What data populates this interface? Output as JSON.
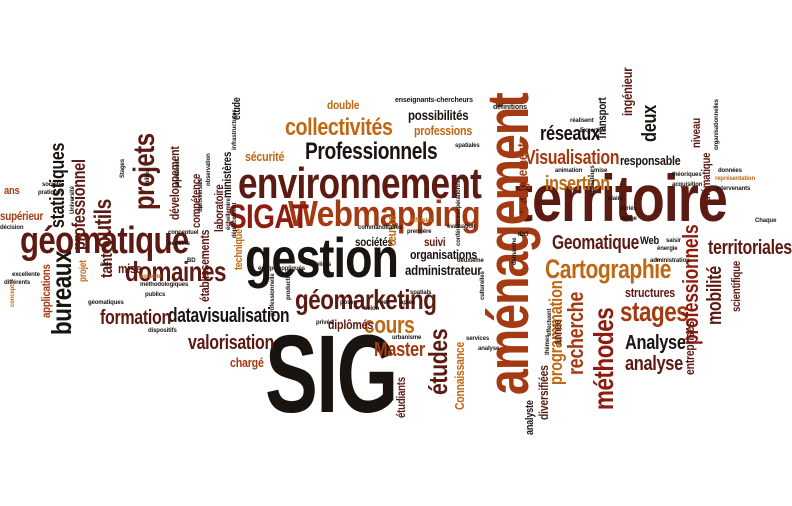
{
  "palette": {
    "dark": "#1a1410",
    "maroon": "#5c1a12",
    "red": "#8e1b10",
    "rust": "#a33a12",
    "orange": "#bf6712",
    "gold": "#c8961c"
  },
  "words": [
    {
      "id": "sig",
      "text": "SIG",
      "color": "dark"
    },
    {
      "id": "territoire",
      "text": "territoire",
      "color": "maroon"
    },
    {
      "id": "amenagement",
      "text": "aménagement",
      "color": "rust"
    },
    {
      "id": "gestion",
      "text": "gestion",
      "color": "dark"
    },
    {
      "id": "environnement",
      "text": "environnement",
      "color": "maroon"
    },
    {
      "id": "geomatique",
      "text": "géomatique",
      "color": "maroon"
    },
    {
      "id": "webmapping",
      "text": "Webmapping",
      "color": "rust"
    },
    {
      "id": "sigat",
      "text": "SIGAT",
      "color": "red"
    },
    {
      "id": "geomarketing",
      "text": "géomarketing",
      "color": "maroon"
    },
    {
      "id": "professionnels",
      "text": "Professionnels",
      "color": "dark"
    },
    {
      "id": "collectivites",
      "text": "collectivités",
      "color": "orange"
    },
    {
      "id": "cartographie",
      "text": "Cartographie",
      "color": "orange"
    },
    {
      "id": "methodes",
      "text": "méthodes",
      "color": "red"
    },
    {
      "id": "projets",
      "text": "projets",
      "color": "maroon"
    },
    {
      "id": "domaines",
      "text": "domaines",
      "color": "maroon"
    },
    {
      "id": "bureaux",
      "text": "bureaux",
      "color": "dark"
    },
    {
      "id": "stages",
      "text": "stages",
      "color": "rust"
    },
    {
      "id": "etudes",
      "text": "études",
      "color": "maroon"
    },
    {
      "id": "cours",
      "text": "cours",
      "color": "orange"
    },
    {
      "id": "outils",
      "text": "outils",
      "color": "maroon"
    },
    {
      "id": "visualisation",
      "text": "Visualisation",
      "color": "rust"
    },
    {
      "id": "recherche",
      "text": "recherche",
      "color": "rust"
    },
    {
      "id": "territoriales",
      "text": "territoriales",
      "color": "maroon"
    },
    {
      "id": "programmation",
      "text": "programmation",
      "color": "orange"
    },
    {
      "id": "datavisualisation",
      "text": "datavisualisation",
      "color": "dark"
    },
    {
      "id": "formation",
      "text": "formation",
      "color": "maroon"
    },
    {
      "id": "valorisation",
      "text": "valorisation",
      "color": "maroon"
    },
    {
      "id": "analyse_cap",
      "text": "Analyse",
      "color": "dark"
    },
    {
      "id": "analyse",
      "text": "analyse",
      "color": "maroon"
    },
    {
      "id": "master",
      "text": "Master",
      "color": "rust"
    },
    {
      "id": "insertion",
      "text": "insertion",
      "color": "orange"
    },
    {
      "id": "geomatique_cap",
      "text": "Geomatique",
      "color": "maroon"
    },
    {
      "id": "reseaux",
      "text": "réseaux",
      "color": "dark"
    },
    {
      "id": "statistiques",
      "text": "statistiques",
      "color": "dark"
    },
    {
      "id": "professionnel",
      "text": "professionnel",
      "color": "maroon"
    },
    {
      "id": "enseignement",
      "text": "enseignement",
      "color": "rust"
    },
    {
      "id": "tant",
      "text": "tant",
      "color": "maroon"
    },
    {
      "id": "professionnels2",
      "text": "professionnels",
      "color": "red"
    },
    {
      "id": "mobilite",
      "text": "mobilité",
      "color": "maroon"
    },
    {
      "id": "deux",
      "text": "deux",
      "color": "dark"
    },
    {
      "id": "structures",
      "text": "structures",
      "color": "maroon"
    },
    {
      "id": "administrateur",
      "text": "administrateur",
      "color": "dark"
    },
    {
      "id": "organisations",
      "text": "organisations",
      "color": "dark"
    },
    {
      "id": "possibilites",
      "text": "possibilités",
      "color": "dark"
    },
    {
      "id": "professions",
      "text": "professions",
      "color": "orange"
    },
    {
      "id": "double",
      "text": "double",
      "color": "orange"
    },
    {
      "id": "developpement",
      "text": "développement",
      "color": "maroon"
    },
    {
      "id": "competence",
      "text": "compétence",
      "color": "maroon"
    },
    {
      "id": "etablissements",
      "text": "établissements",
      "color": "maroon"
    },
    {
      "id": "laboratoire",
      "text": "laboratoire",
      "color": "maroon"
    },
    {
      "id": "ministeres",
      "text": "ministères",
      "color": "dark"
    },
    {
      "id": "etude",
      "text": "étude",
      "color": "dark"
    },
    {
      "id": "securite",
      "text": "sécurité",
      "color": "orange"
    },
    {
      "id": "societes",
      "text": "sociétés",
      "color": "dark"
    },
    {
      "id": "oeuvre",
      "text": "œuvre",
      "color": "orange"
    },
    {
      "id": "suivi",
      "text": "suivi",
      "color": "maroon"
    },
    {
      "id": "diplomes",
      "text": "diplômés",
      "color": "maroon"
    },
    {
      "id": "charge",
      "text": "chargé",
      "color": "rust"
    },
    {
      "id": "mise",
      "text": "mise",
      "color": "maroon"
    },
    {
      "id": "technique",
      "text": "technique",
      "color": "orange"
    },
    {
      "id": "projet",
      "text": "projet",
      "color": "orange"
    },
    {
      "id": "ans",
      "text": "ans",
      "color": "rust"
    },
    {
      "id": "superieur",
      "text": "supérieur",
      "color": "rust"
    },
    {
      "id": "applications",
      "text": "applications",
      "color": "rust"
    },
    {
      "id": "ingenieur",
      "text": "ingénieur",
      "color": "maroon"
    },
    {
      "id": "responsable",
      "text": "responsable",
      "color": "dark"
    },
    {
      "id": "niveau",
      "text": "niveau",
      "color": "maroon"
    },
    {
      "id": "thematique",
      "text": "thématique",
      "color": "maroon"
    },
    {
      "id": "transport",
      "text": "Transport",
      "color": "dark"
    },
    {
      "id": "web",
      "text": "Web",
      "color": "dark"
    },
    {
      "id": "entreprises",
      "text": "entreprises",
      "color": "maroon"
    },
    {
      "id": "scientifique",
      "text": "scientifique",
      "color": "maroon"
    },
    {
      "id": "connaissance",
      "text": "Connaissance",
      "color": "orange"
    },
    {
      "id": "diversifiees",
      "text": "diversifiées",
      "color": "maroon"
    },
    {
      "id": "etudiants",
      "text": "étudiants",
      "color": "maroon"
    },
    {
      "id": "analyste",
      "text": "analyste",
      "color": "dark"
    },
    {
      "id": "annee",
      "text": "année",
      "color": "maroon"
    },
    {
      "id": "enseignants",
      "text": "enseignants-chercheurs",
      "color": "dark"
    },
    {
      "id": "definitions",
      "text": "définitions",
      "color": "dark"
    },
    {
      "id": "commanditaires",
      "text": "commanditaires",
      "color": "dark"
    },
    {
      "id": "premiere",
      "text": "première",
      "color": "dark"
    },
    {
      "id": "diffusion",
      "text": "diffusion",
      "color": "orange"
    },
    {
      "id": "evaluation",
      "text": "évaluation",
      "color": "dark"
    },
    {
      "id": "spatiales",
      "text": "spatiales",
      "color": "dark"
    },
    {
      "id": "operationnel",
      "text": "opérationnel",
      "color": "dark"
    },
    {
      "id": "poser",
      "text": "poser",
      "color": "dark"
    },
    {
      "id": "lien",
      "text": "lien",
      "color": "dark"
    },
    {
      "id": "aptes",
      "text": "aptes",
      "color": "dark"
    },
    {
      "id": "prives",
      "text": "privés",
      "color": "dark"
    },
    {
      "id": "selon",
      "text": "selon",
      "color": "dark"
    },
    {
      "id": "urbanisme",
      "text": "urbanisme",
      "color": "dark"
    },
    {
      "id": "spatials",
      "text": "spatials",
      "color": "dark"
    },
    {
      "id": "ateliers",
      "text": "Ateliers",
      "color": "dark"
    },
    {
      "id": "equipe",
      "text": "équipe",
      "color": "dark"
    },
    {
      "id": "appliques",
      "text": "appliqués",
      "color": "dark"
    },
    {
      "id": "conceptuel",
      "text": "conceptuel",
      "color": "dark"
    },
    {
      "id": "besoins",
      "text": "besoins",
      "color": "dark"
    },
    {
      "id": "collecte",
      "text": "collecte",
      "color": "orange"
    },
    {
      "id": "aide",
      "text": "aide",
      "color": "dark"
    },
    {
      "id": "methodologiques",
      "text": "méthodologiques",
      "color": "dark"
    },
    {
      "id": "publics",
      "text": "publics",
      "color": "dark"
    },
    {
      "id": "geomatiques",
      "text": "géomatiques",
      "color": "dark"
    },
    {
      "id": "dispositifs",
      "text": "dispositifs",
      "color": "dark"
    },
    {
      "id": "excellente",
      "text": "excellente",
      "color": "dark"
    },
    {
      "id": "differents",
      "text": "différents",
      "color": "dark"
    },
    {
      "id": "decision",
      "text": "décision",
      "color": "dark"
    },
    {
      "id": "concepts",
      "text": "concepts",
      "color": "orange"
    },
    {
      "id": "pratiques",
      "text": "pratiques",
      "color": "dark"
    },
    {
      "id": "societe",
      "text": "société",
      "color": "dark"
    },
    {
      "id": "universite",
      "text": "Université",
      "color": "dark"
    },
    {
      "id": "stages_small",
      "text": "Stages",
      "color": "dark"
    },
    {
      "id": "milieu",
      "text": "milieu",
      "color": "dark"
    },
    {
      "id": "lancement",
      "text": "lancement",
      "color": "dark"
    },
    {
      "id": "infrastructures",
      "text": "infrastructures",
      "color": "dark"
    },
    {
      "id": "observation",
      "text": "observation",
      "color": "dark"
    },
    {
      "id": "transversale",
      "text": "transversale",
      "color": "dark"
    },
    {
      "id": "echelle",
      "text": "échellemire",
      "color": "dark"
    },
    {
      "id": "deplacement",
      "text": "déplacement",
      "color": "dark"
    },
    {
      "id": "production",
      "text": "production",
      "color": "dark"
    },
    {
      "id": "professionnelle",
      "text": "professionnelle",
      "color": "dark"
    },
    {
      "id": "realisent",
      "text": "réalisent",
      "color": "dark"
    },
    {
      "id": "expertise",
      "text": "Expertise",
      "color": "dark"
    },
    {
      "id": "animation",
      "text": "animation",
      "color": "dark"
    },
    {
      "id": "mise2",
      "text": "mise",
      "color": "dark"
    },
    {
      "id": "utilisateurs",
      "text": "utilisateurs",
      "color": "dark"
    },
    {
      "id": "clairs",
      "text": "clairs",
      "color": "dark"
    },
    {
      "id": "varies",
      "text": "variés",
      "color": "dark"
    },
    {
      "id": "image",
      "text": "image",
      "color": "dark"
    },
    {
      "id": "theoriques",
      "text": "théoriques",
      "color": "dark"
    },
    {
      "id": "acquisition",
      "text": "acquisition",
      "color": "dark"
    },
    {
      "id": "organisationnelles",
      "text": "organisationnelles",
      "color": "dark"
    },
    {
      "id": "representation",
      "text": "représentation",
      "color": "orange"
    },
    {
      "id": "donnees",
      "text": "données",
      "color": "dark"
    },
    {
      "id": "intervenants",
      "text": "intervenants",
      "color": "dark"
    },
    {
      "id": "chaque",
      "text": "Chaque",
      "color": "dark"
    },
    {
      "id": "administration",
      "text": "administration",
      "color": "dark"
    },
    {
      "id": "saisir",
      "text": "saisir",
      "color": "dark"
    },
    {
      "id": "energie",
      "text": "énergie",
      "color": "dark"
    },
    {
      "id": "demarche",
      "text": "démarche",
      "color": "dark"
    },
    {
      "id": "effectuent",
      "text": "effectuent",
      "color": "dark"
    },
    {
      "id": "themes",
      "text": "thèmes",
      "color": "dark"
    },
    {
      "id": "culturelles",
      "text": "culturelles",
      "color": "dark"
    },
    {
      "id": "deuxieme",
      "text": "deuxième",
      "color": "dark"
    },
    {
      "id": "services",
      "text": "services",
      "color": "dark"
    },
    {
      "id": "analyse_small",
      "text": "analyse",
      "color": "dark"
    },
    {
      "id": "conferences",
      "text": "conférences",
      "color": "dark"
    },
    {
      "id": "idg",
      "text": "IDG",
      "color": "dark"
    },
    {
      "id": "bd",
      "text": "BD",
      "color": "dark"
    }
  ]
}
